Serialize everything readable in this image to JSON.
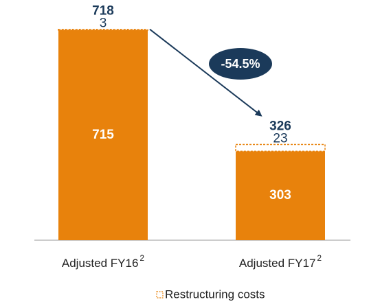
{
  "chart_data": {
    "type": "stacked-bar",
    "categories": [
      "Adjusted FY16",
      "Adjusted FY17"
    ],
    "category_notes": [
      "2",
      "2"
    ],
    "series": [
      {
        "color": "#e8820c",
        "values": [
          715,
          303
        ]
      },
      {
        "name": "Restructuring costs",
        "color": "#e8820c",
        "style": "dashed",
        "values": [
          3,
          23
        ]
      }
    ],
    "totals": [
      718,
      326
    ],
    "ylim": [
      0,
      750
    ],
    "annotation": "-54.5%",
    "annotation_color": "#1b3a5a",
    "text_color": "#1b3a5a",
    "legend": "bottom"
  }
}
